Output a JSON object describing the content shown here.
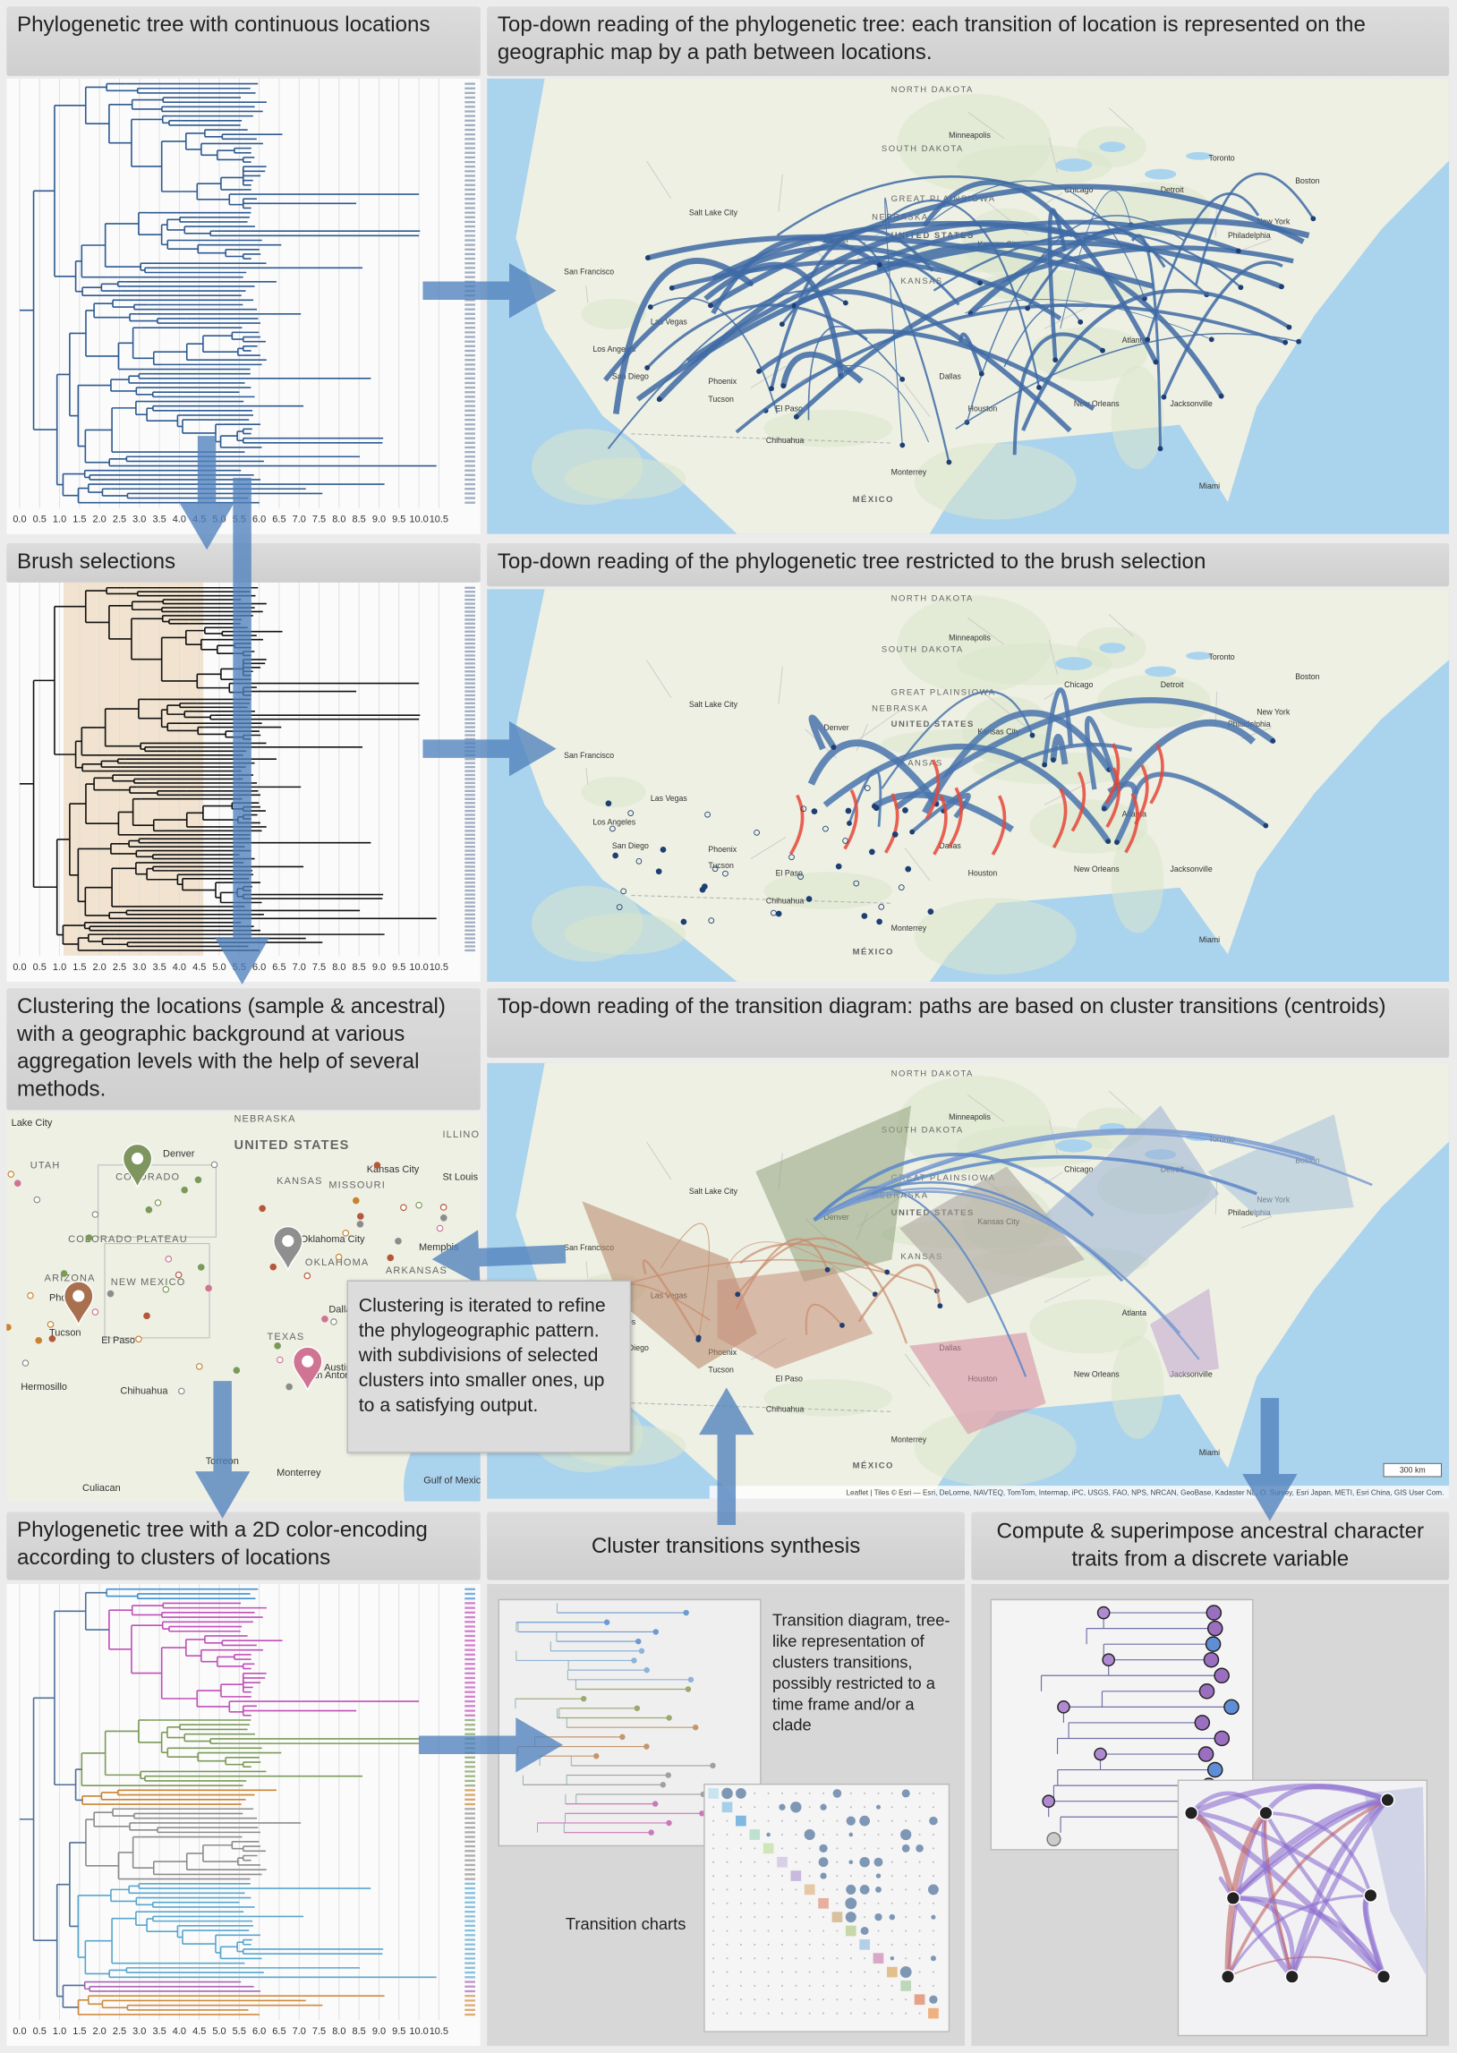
{
  "panels": [
    {
      "title": "Phylogenetic tree with continuous locations"
    },
    {
      "title": "Top-down reading of the phylogenetic tree: each transition of location is represented on the geographic map by a path between locations."
    },
    {
      "title": "Brush selections"
    },
    {
      "title": "Top-down reading of the phylogenetic tree restricted to the brush selection"
    },
    {
      "title": "Clustering the locations (sample & ancestral) with a geographic background at various aggregation levels with the help of several methods."
    },
    {
      "title": "Top-down reading of the transition diagram: paths are based on cluster transitions (centroids)"
    },
    {
      "title": "Phylogenetic tree with a 2D color-encoding according to clusters of locations"
    },
    {
      "title": "Cluster transitions synthesis"
    },
    {
      "title": "Compute & superimpose ancestral character traits from a discrete variable"
    }
  ],
  "tree_axis": {
    "xticks": [
      {
        "value": 0,
        "label": "0.0"
      },
      0.5,
      {
        "value": 1,
        "label": "1.0"
      },
      1.5,
      {
        "value": 2,
        "label": "2.0"
      },
      2.5,
      {
        "value": 3,
        "label": "3.0"
      },
      3.5,
      {
        "value": 4,
        "label": "4.0"
      },
      4.5,
      {
        "value": 5,
        "label": "5.0"
      },
      5.5,
      {
        "value": 6,
        "label": "6.0"
      },
      6.5,
      {
        "value": 7,
        "label": "7.0"
      },
      7.5,
      {
        "value": 8,
        "label": "8.0"
      },
      8.5,
      {
        "value": 9,
        "label": "9.0"
      },
      9.5,
      {
        "value": 10,
        "label": "10.0"
      },
      10.5
    ]
  },
  "us_map_labels": [
    "NORTH DAKOTA",
    "SOUTH DAKOTA",
    "Minneapolis",
    "GREAT PLAINS",
    "NEBRASKA",
    "UNITED STATES",
    "IOWA",
    "Denver",
    "KANSAS",
    "Kansas City",
    "Chicago",
    "Detroit",
    "Toronto",
    "Boston",
    "New York",
    "Philadelphia",
    "Salt Lake City",
    "San Francisco",
    "Las Vegas",
    "Los Angeles",
    "San Diego",
    "Phoenix",
    "Tucson",
    "El Paso",
    "Dallas",
    "Houston",
    "New Orleans",
    "Atlanta",
    "Jacksonville",
    "Miami",
    "Monterrey",
    "MÉXICO",
    "Chihuahua"
  ],
  "cluster_map_labels": [
    "Lake City",
    "NEBRASKA",
    "UNITED STATES",
    "Denver",
    "KANSAS",
    "MISSOURI",
    "Kansas City",
    "St Louis",
    "ILLINOIS",
    "UTAH",
    "COLORADO",
    "COLORADO PLATEAU",
    "Oklahoma City",
    "OKLAHOMA",
    "ARKANSAS",
    "Memphis",
    "ARIZONA",
    "NEW MEXICO",
    "Phoenix",
    "Tucson",
    "El Paso",
    "Dallas",
    "TEXAS",
    "Austin",
    "San Antonio",
    "Hermosillo",
    "Chihuahua",
    "Torreon",
    "Monterrey",
    "Culiacan",
    "Gulf of Mexico"
  ],
  "callout": "Clustering is iterated to refine the phylogeographic pattern. with subdivisions of selected clusters into smaller ones, up to a satisfying output.",
  "attribution": "Leaflet | Tiles © Esri — Esri, DeLorme, NAVTEQ, TomTom, Intermap, iPC, USGS, FAO, NPS, NRCAN, GeoBase, Kadaster NL, O. Survey, Esri Japan, METI, Esri China, GIS User Com.",
  "scale_label": "300 km",
  "transition_diagram_caption": "Transition diagram, tree-like representation of clusters transitions, possibly restricted to a time frame and/or a clade",
  "transition_charts_caption": "Transition charts"
}
